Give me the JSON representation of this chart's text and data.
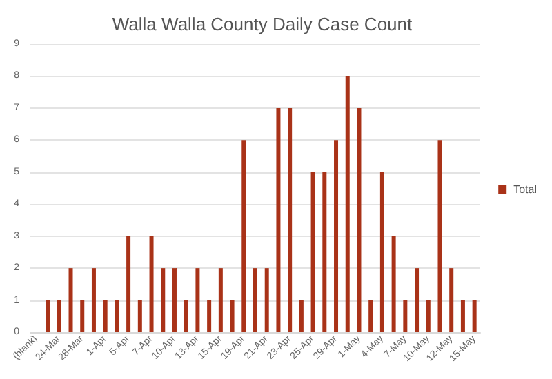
{
  "chart_data": {
    "type": "bar",
    "title": "Walla Walla County Daily Case Count",
    "categories": [
      "(blank)",
      null,
      "24-Mar",
      null,
      "28-Mar",
      null,
      "1-Apr",
      null,
      "5-Apr",
      null,
      "7-Apr",
      null,
      "10-Apr",
      null,
      "13-Apr",
      null,
      "15-Apr",
      null,
      "19-Apr",
      null,
      "21-Apr",
      null,
      "23-Apr",
      null,
      "25-Apr",
      null,
      "29-Apr",
      null,
      "1-May",
      null,
      "4-May",
      null,
      "7-May",
      null,
      "10-May",
      null,
      "12-May",
      null,
      "15-May"
    ],
    "series": [
      {
        "name": "Total",
        "color": "#a93218",
        "values": [
          null,
          1,
          1,
          2,
          1,
          2,
          1,
          1,
          3,
          1,
          3,
          2,
          2,
          1,
          2,
          1,
          2,
          1,
          6,
          2,
          2,
          7,
          7,
          1,
          5,
          5,
          6,
          8,
          7,
          1,
          5,
          3,
          1,
          2,
          1,
          6,
          2,
          1,
          1
        ]
      }
    ],
    "ylim": [
      0,
      9
    ],
    "yticks": [
      0,
      1,
      2,
      3,
      4,
      5,
      6,
      7,
      8,
      9
    ],
    "grid": "y",
    "legend": "right"
  }
}
